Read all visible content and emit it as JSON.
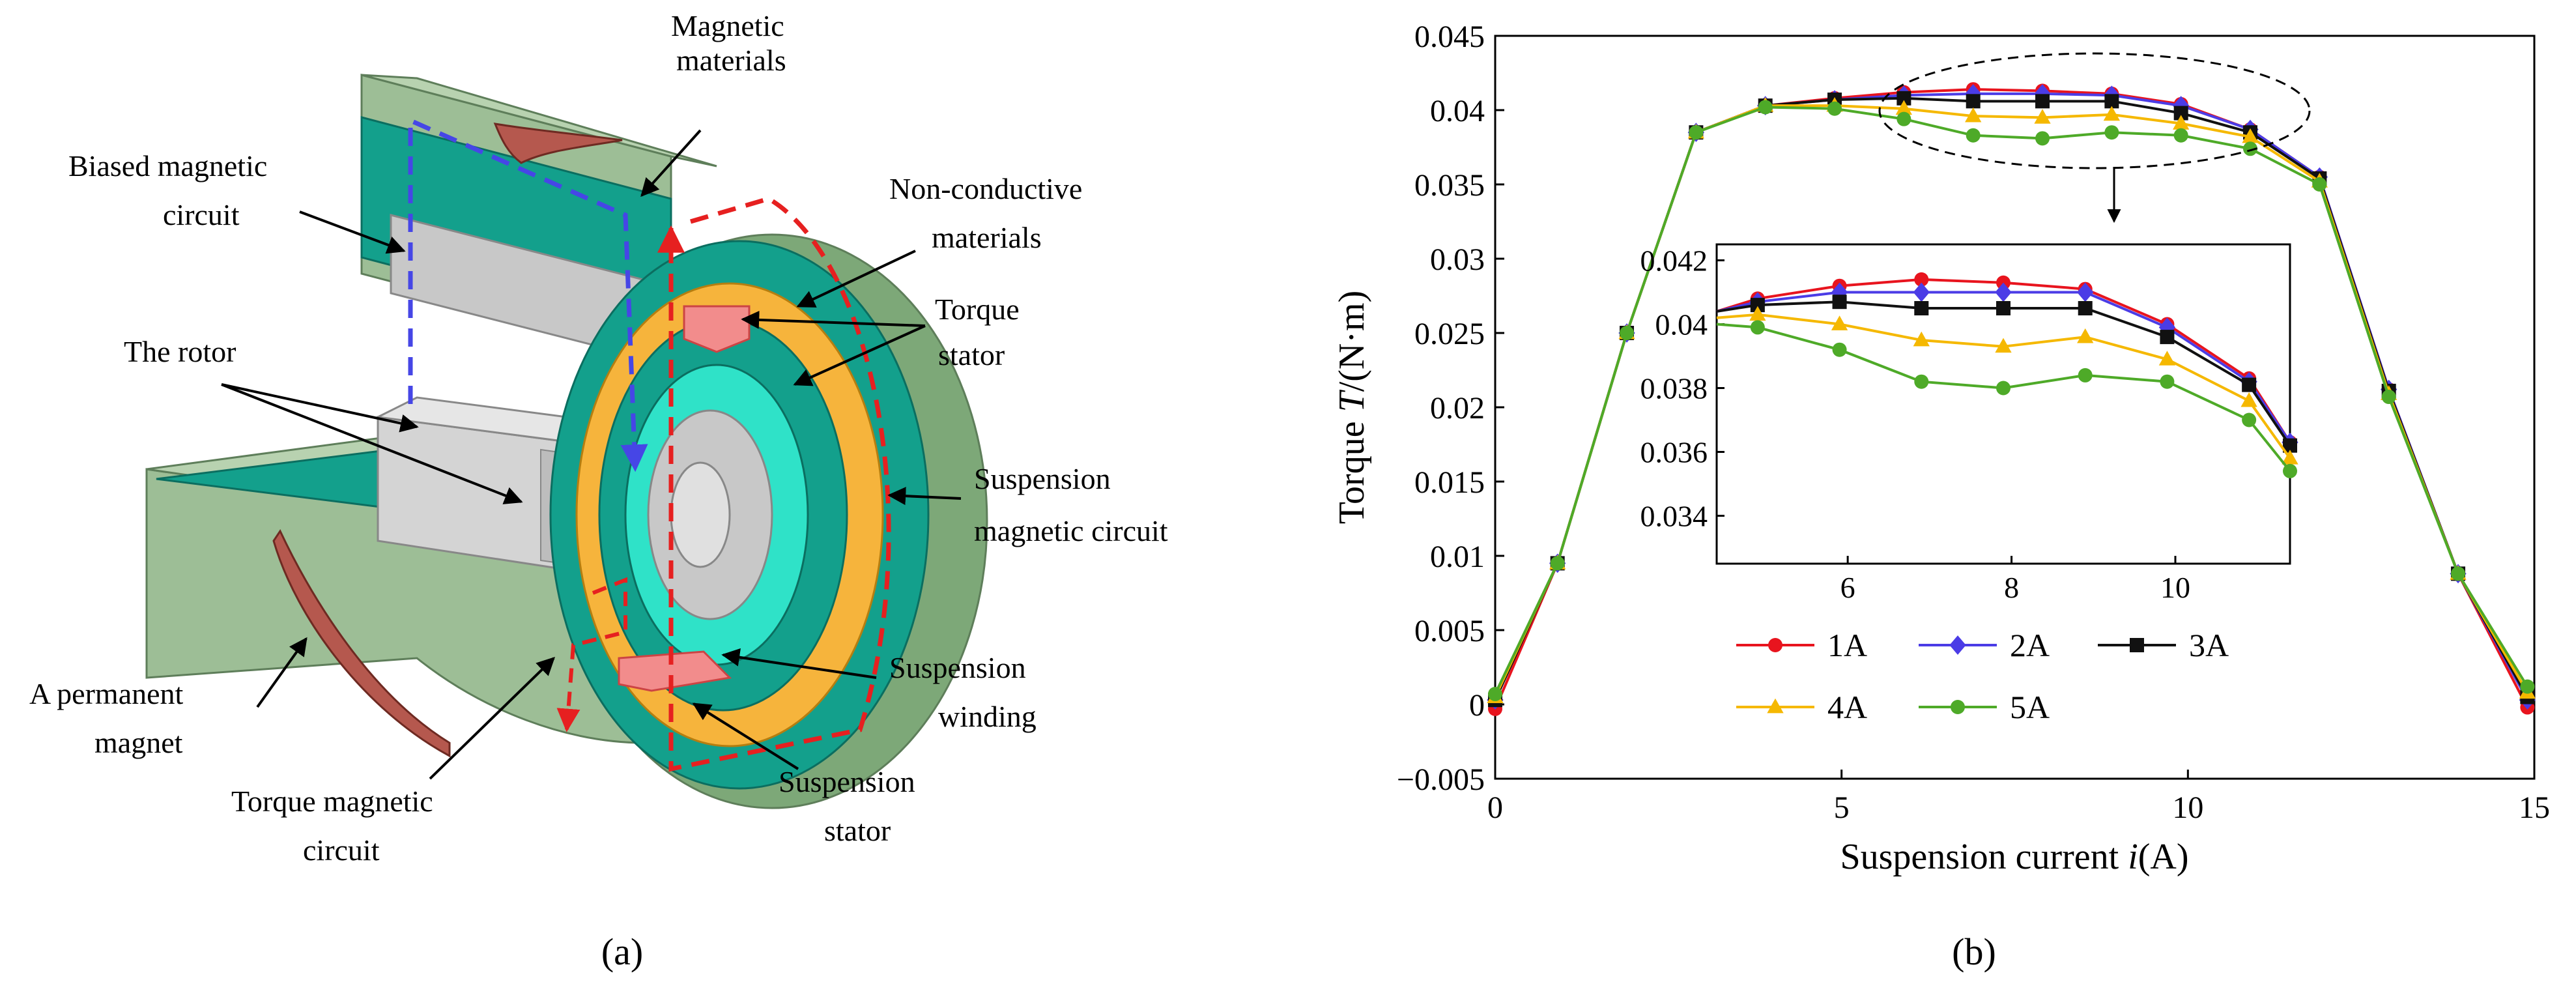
{
  "figure": {
    "panel_a_label": "(a)",
    "panel_b_label": "(b)",
    "colors": {
      "case_green": "#9DBE96",
      "case_green_dark": "#7DA878",
      "teal": "#13A08C",
      "cyan": "#2FE2C8",
      "orange": "#F6B43C",
      "gray": "#C8C8C8",
      "pink": "#F28C8C",
      "magnet": "#B5584E",
      "blue_dash": "#4646E6",
      "red_dash": "#E62020"
    }
  },
  "diagram": {
    "labels": {
      "magnetic_materials_1": "Magnetic",
      "magnetic_materials_2": "materials",
      "biased_1": "Biased magnetic",
      "biased_2": "circuit",
      "nonconductive_1": "Non-conductive",
      "nonconductive_2": "materials",
      "torque_stator_1": "Torque",
      "torque_stator_2": "stator",
      "rotor": "The rotor",
      "suspension_circuit_1": "Suspension",
      "suspension_circuit_2": "magnetic circuit",
      "permanent_1": "A permanent",
      "permanent_2": "magnet",
      "suspension_winding_1": "Suspension",
      "suspension_winding_2": "winding",
      "torque_circuit_1": "Torque magnetic",
      "torque_circuit_2": "circuit",
      "suspension_stator_1": "Suspension",
      "suspension_stator_2": "stator"
    }
  },
  "chart_data": {
    "type": "line",
    "xlabel_prefix": "Suspension current ",
    "xlabel_var": "i",
    "xlabel_suffix": "(A)",
    "ylabel_prefix": "Torque ",
    "ylabel_var": "T",
    "ylabel_suffix": "/(N·m)",
    "xlim": [
      0,
      15
    ],
    "ylim": [
      -0.005,
      0.045
    ],
    "xticks": [
      0,
      5,
      10,
      15
    ],
    "yticks": [
      -0.005,
      0,
      0.005,
      0.01,
      0.015,
      0.02,
      0.025,
      0.03,
      0.035,
      0.04,
      0.045
    ],
    "ytick_labels": [
      "−0.005",
      "0",
      "0.005",
      "0.01",
      "0.015",
      "0.02",
      "0.025",
      "0.03",
      "0.035",
      "0.04",
      "0.045"
    ],
    "x": [
      0,
      0.9,
      1.9,
      2.9,
      3.9,
      4.9,
      5.9,
      6.9,
      7.9,
      8.9,
      9.9,
      10.9,
      11.9,
      12.9,
      13.9,
      14.9
    ],
    "series": [
      {
        "name": "1A",
        "color": "#E8141E",
        "marker": "circle",
        "values": [
          -0.0003,
          0.0095,
          0.025,
          0.0385,
          0.0403,
          0.0408,
          0.0412,
          0.0414,
          0.0413,
          0.0411,
          0.0404,
          0.0387,
          0.0355,
          0.0212,
          0.0088,
          -0.0002
        ]
      },
      {
        "name": "2A",
        "color": "#4B3CE6",
        "marker": "diamond",
        "values": [
          0.0003,
          0.0095,
          0.025,
          0.0385,
          0.0403,
          0.0407,
          0.041,
          0.0411,
          0.0411,
          0.041,
          0.0403,
          0.0387,
          0.0355,
          0.0212,
          0.0088,
          0.0003
        ]
      },
      {
        "name": "3A",
        "color": "#111111",
        "marker": "square",
        "values": [
          0.0003,
          0.0095,
          0.025,
          0.0385,
          0.0403,
          0.0407,
          0.0408,
          0.0406,
          0.0406,
          0.0406,
          0.0398,
          0.0385,
          0.0354,
          0.0211,
          0.0088,
          0.0005
        ]
      },
      {
        "name": "4A",
        "color": "#F5B800",
        "marker": "triangle",
        "values": [
          0.0005,
          0.0095,
          0.025,
          0.0385,
          0.0403,
          0.0403,
          0.0401,
          0.0396,
          0.0395,
          0.0397,
          0.0391,
          0.0382,
          0.0352,
          0.0209,
          0.0088,
          0.0008
        ]
      },
      {
        "name": "5A",
        "color": "#4EAA28",
        "marker": "circle",
        "values": [
          0.0007,
          0.0095,
          0.025,
          0.0385,
          0.0402,
          0.0401,
          0.0394,
          0.0383,
          0.0381,
          0.0385,
          0.0383,
          0.0374,
          0.035,
          0.0207,
          0.0088,
          0.0012
        ]
      }
    ],
    "inset": {
      "xlim": [
        4.4,
        11.4
      ],
      "ylim": [
        0.0325,
        0.0425
      ],
      "xticks": [
        6,
        8,
        10
      ],
      "yticks": [
        0.034,
        0.036,
        0.038,
        0.04,
        0.042
      ],
      "ytick_labels": [
        "0.034",
        "0.036",
        "0.038",
        "0.04",
        "0.042"
      ],
      "x": [
        4.4,
        4.9,
        5.9,
        6.9,
        7.9,
        8.9,
        9.9,
        10.9,
        11.4
      ],
      "series": [
        {
          "name": "1A",
          "values": [
            0.0404,
            0.0408,
            0.0412,
            0.0414,
            0.0413,
            0.0411,
            0.04,
            0.0383,
            0.0363
          ]
        },
        {
          "name": "2A",
          "values": [
            0.0404,
            0.0407,
            0.041,
            0.041,
            0.041,
            0.041,
            0.0399,
            0.0382,
            0.0363
          ]
        },
        {
          "name": "3A",
          "values": [
            0.0404,
            0.0406,
            0.0407,
            0.0405,
            0.0405,
            0.0405,
            0.0396,
            0.0381,
            0.0362
          ]
        },
        {
          "name": "4A",
          "values": [
            0.0402,
            0.0403,
            0.04,
            0.0395,
            0.0393,
            0.0396,
            0.0389,
            0.0376,
            0.0358
          ]
        },
        {
          "name": "5A",
          "values": [
            0.04,
            0.0399,
            0.0392,
            0.0382,
            0.038,
            0.0384,
            0.0382,
            0.037,
            0.0354
          ]
        }
      ]
    },
    "legend": {
      "placement": "bottom-center"
    }
  }
}
